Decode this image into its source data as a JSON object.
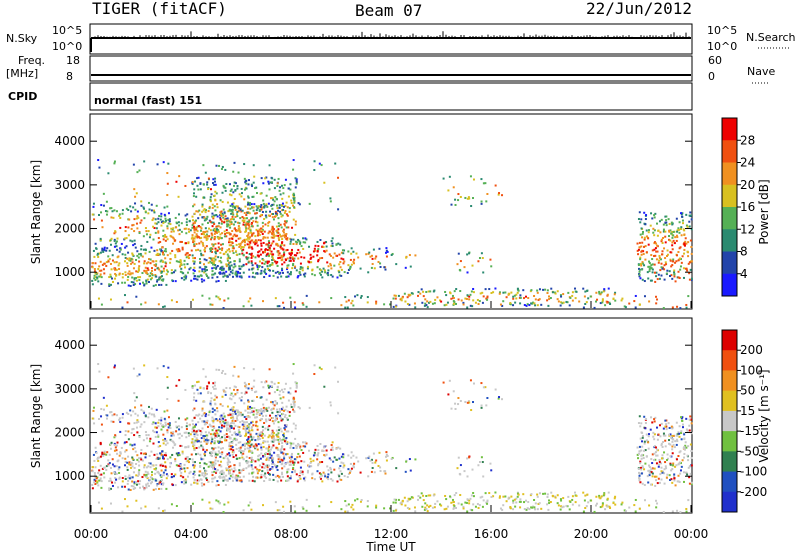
{
  "header": {
    "station": "TIGER (fitACF)",
    "beam": "Beam 07",
    "date": "22/Jun/2012"
  },
  "status_panels": {
    "nsky_label": "N.Sky",
    "nsky_ticks": [
      "10^5",
      "10^0"
    ],
    "nsearch_label": "N.Search",
    "nsearch_ticks": [
      "10^5",
      "10^0"
    ],
    "freq_label_1": "Freq.",
    "freq_label_2": "[MHz]",
    "freq_ticks": [
      "18",
      "8"
    ],
    "nave_label": "Nave",
    "nave_ticks": [
      "60",
      "0"
    ],
    "cpid_label": "CPID",
    "cpid_value": "normal (fast) 151"
  },
  "chart_data": [
    {
      "type": "heatmap",
      "name": "power",
      "ylabel": "Slant Range [km]",
      "ylim": [
        180,
        4600
      ],
      "yticks": [
        "4000",
        "3000",
        "2000",
        "1000"
      ],
      "ytick_values": [
        4000,
        3000,
        2000,
        1000
      ],
      "colorbar_label": "Power [dB]",
      "colorbar_ticks": [
        "28",
        "24",
        "20",
        "16",
        "12",
        "8",
        "4"
      ],
      "colorbar_range": [
        0,
        32
      ],
      "colors": [
        "#1a1aff",
        "#2244aa",
        "#2a8a70",
        "#55b055",
        "#d8c020",
        "#f09020",
        "#f05010",
        "#ee0000"
      ]
    },
    {
      "type": "heatmap",
      "name": "velocity",
      "ylabel": "Slant Range [km]",
      "ylim": [
        180,
        4600
      ],
      "yticks": [
        "4000",
        "3000",
        "2000",
        "1000"
      ],
      "ytick_values": [
        4000,
        3000,
        2000,
        1000
      ],
      "colorbar_label": "Velocity [m s⁻¹]",
      "colorbar_ticks": [
        "200",
        "100",
        "50",
        "15",
        "-15",
        "-50",
        "-100",
        "-200"
      ],
      "colors": [
        "#2030cc",
        "#2050c0",
        "#308050",
        "#70c040",
        "#c8c8c8",
        "#e0c020",
        "#f09020",
        "#f05010",
        "#dd0000"
      ],
      "xlabel": "Time UT",
      "xticks": [
        "00:00",
        "04:00",
        "08:00",
        "12:00",
        "16:00",
        "20:00",
        "00:00"
      ],
      "xlim_hours": [
        0,
        24
      ]
    }
  ]
}
